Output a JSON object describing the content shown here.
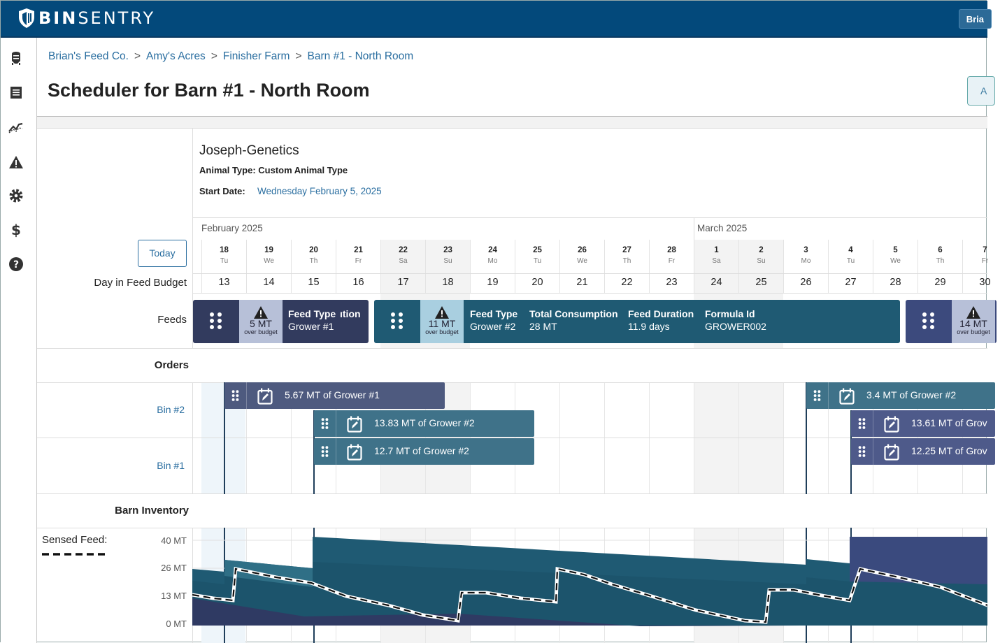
{
  "header": {
    "brand_bold": "BIN",
    "brand_light": "SENTRY",
    "user_label": "Bria"
  },
  "sidebar": {
    "icons": [
      "bin-icon",
      "list-icon",
      "analytics-icon",
      "alert-icon",
      "gear-icon",
      "dollar-icon",
      "help-icon"
    ]
  },
  "breadcrumb": [
    {
      "label": "Brian's Feed Co."
    },
    {
      "label": "Amy's Acres"
    },
    {
      "label": "Finisher Farm"
    },
    {
      "label": "Barn #1 - North Room"
    }
  ],
  "breadcrumb_sep": ">",
  "page_title": "Scheduler for Barn #1 - North Room",
  "right_button_label": "A",
  "info": {
    "name": "Joseph-Genetics",
    "animal_type": "Animal Type: Custom Animal Type",
    "start_label": "Start Date:",
    "start_value": "Wednesday February 5, 2025"
  },
  "today_label": "Today",
  "months": [
    "February 2025",
    "March 2025"
  ],
  "days": [
    {
      "num": "18",
      "wd": "Tu",
      "budget": "13",
      "weekend": false
    },
    {
      "num": "19",
      "wd": "We",
      "budget": "14",
      "weekend": false
    },
    {
      "num": "20",
      "wd": "Th",
      "budget": "15",
      "weekend": false
    },
    {
      "num": "21",
      "wd": "Fr",
      "budget": "16",
      "weekend": false
    },
    {
      "num": "22",
      "wd": "Sa",
      "budget": "17",
      "weekend": true
    },
    {
      "num": "23",
      "wd": "Su",
      "budget": "18",
      "weekend": true
    },
    {
      "num": "24",
      "wd": "Mo",
      "budget": "19",
      "weekend": false
    },
    {
      "num": "25",
      "wd": "Tu",
      "budget": "20",
      "weekend": false
    },
    {
      "num": "26",
      "wd": "We",
      "budget": "21",
      "weekend": false
    },
    {
      "num": "27",
      "wd": "Th",
      "budget": "22",
      "weekend": false
    },
    {
      "num": "28",
      "wd": "Fr",
      "budget": "23",
      "weekend": false
    },
    {
      "num": "1",
      "wd": "Sa",
      "budget": "24",
      "weekend": true
    },
    {
      "num": "2",
      "wd": "Su",
      "budget": "25",
      "weekend": true
    },
    {
      "num": "3",
      "wd": "Mo",
      "budget": "26",
      "weekend": false
    },
    {
      "num": "4",
      "wd": "Tu",
      "budget": "27",
      "weekend": false
    },
    {
      "num": "5",
      "wd": "We",
      "budget": "28",
      "weekend": false
    },
    {
      "num": "6",
      "wd": "Th",
      "budget": "29",
      "weekend": false
    },
    {
      "num": "7",
      "wd": "Fr",
      "budget": "30",
      "weekend": false
    }
  ],
  "rows": {
    "budget_label": "Day in Feed Budget",
    "feeds_label": "Feeds",
    "orders_label": "Orders",
    "bin2_label": "Bin #2",
    "bin1_label": "Bin #1",
    "inventory_label": "Barn Inventory",
    "sensed_label": "Sensed Feed:"
  },
  "feeds": [
    {
      "mt": "5 MT",
      "over": "over budget",
      "type_h": "Feed Type",
      "type_v": "Grower #1",
      "extra_h": "ıtion",
      "color": "#323b5e",
      "warn_color": "#b7c0d8"
    },
    {
      "mt": "11 MT",
      "over": "over budget",
      "type_h": "Feed Type",
      "type_v": "Grower #2",
      "cons_h": "Total Consumption",
      "cons_v": "28 MT",
      "dur_h": "Feed Duration",
      "dur_v": "11.9 days",
      "form_h": "Formula Id",
      "form_v": "GROWER002",
      "color": "#1f5a73",
      "warn_color": "#a9cfe0"
    },
    {
      "mt": "14 MT",
      "over": "over budget",
      "color": "#3c4a7d",
      "warn_color": "#b7c0d8"
    }
  ],
  "orders": [
    {
      "label": "5.67 MT of Grower #1",
      "color": "#4e5a7f"
    },
    {
      "label": "13.83 MT of Grower #2",
      "color": "#3f7289"
    },
    {
      "label": "12.7 MT of Grower #2",
      "color": "#3f7289"
    },
    {
      "label": "3.4 MT of Grower #2",
      "color": "#3f7289"
    },
    {
      "label": "13.61 MT of Grov",
      "color": "#4e5a8a"
    },
    {
      "label": "12.25 MT of Grov",
      "color": "#4e5a8a"
    }
  ],
  "inventory_axis": [
    "40 MT",
    "26 MT",
    "13 MT",
    "0 MT"
  ],
  "colors": {
    "navy": "#03497b",
    "teal": "#1f5a73",
    "link": "#2a6ea0"
  }
}
